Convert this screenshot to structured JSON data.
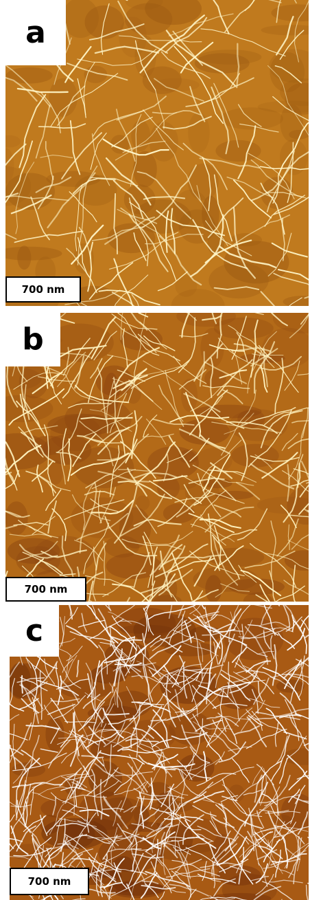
{
  "panels": [
    {
      "id": "a",
      "label": "a",
      "scale_bar": "700 nm",
      "palette": {
        "background": "#c07a1e",
        "background_dark": "#9c5a12",
        "fiber": "#fff6c8"
      },
      "fiber_density": "sparse"
    },
    {
      "id": "b",
      "label": "b",
      "scale_bar": "700 nm",
      "palette": {
        "background": "#b36a18",
        "background_dark": "#8a4410",
        "fiber": "#fff3c0"
      },
      "fiber_density": "medium"
    },
    {
      "id": "c",
      "label": "c",
      "scale_bar": "700 nm",
      "palette": {
        "background": "#a85a14",
        "background_dark": "#6e2e0a",
        "fiber": "#ffffff"
      },
      "fiber_density": "dense"
    }
  ]
}
